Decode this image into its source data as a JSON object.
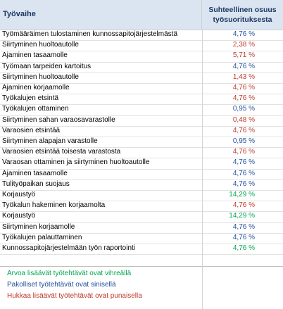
{
  "header": {
    "col1": "Työvaihe",
    "col2_line1": "Suhteellinen osuus",
    "col2_line2": "työsuorituksesta"
  },
  "colors": {
    "green": "#00a651",
    "blue": "#1f4e9c",
    "red": "#c0392b"
  },
  "rows": [
    {
      "name": "Työmääräimen tulostaminen kunnossapitojärjestelmästä",
      "value": "4,76 %",
      "color": "blue"
    },
    {
      "name": "Siirtyminen huoltoautolle",
      "value": "2,38 %",
      "color": "red"
    },
    {
      "name": "Ajaminen tasaamolle",
      "value": "5,71 %",
      "color": "red"
    },
    {
      "name": "Työmaan tarpeiden kartoitus",
      "value": "4,76 %",
      "color": "blue"
    },
    {
      "name": "Siirtyminen huoltoautolle",
      "value": "1,43 %",
      "color": "red"
    },
    {
      "name": "Ajaminen korjaamolle",
      "value": "4,76 %",
      "color": "red"
    },
    {
      "name": "Työkalujen etsintä",
      "value": "4,76 %",
      "color": "red"
    },
    {
      "name": "Työkalujen ottaminen",
      "value": "0,95 %",
      "color": "blue"
    },
    {
      "name": "Siirtyminen sahan varaosavarastolle",
      "value": "0,48 %",
      "color": "red"
    },
    {
      "name": "Varaosien etsintää",
      "value": "4,76 %",
      "color": "red"
    },
    {
      "name": "Siirtyminen alapajan varastolle",
      "value": "0,95 %",
      "color": "blue"
    },
    {
      "name": "Varaosien etsintää toisesta varastosta",
      "value": "4,76 %",
      "color": "red"
    },
    {
      "name": "Varaosan ottaminen ja siirtyminen huoltoautolle",
      "value": "4,76 %",
      "color": "blue"
    },
    {
      "name": "Ajaminen tasaamolle",
      "value": "4,76 %",
      "color": "blue"
    },
    {
      "name": "Tulityöpaikan suojaus",
      "value": "4,76 %",
      "color": "blue"
    },
    {
      "name": "Korjaustyö",
      "value": "14,29 %",
      "color": "green"
    },
    {
      "name": "Työkalun hakeminen korjaamolta",
      "value": "4,76 %",
      "color": "red"
    },
    {
      "name": "Korjaustyö",
      "value": "14,29 %",
      "color": "green"
    },
    {
      "name": "Siirtyminen korjaamolle",
      "value": "4,76 %",
      "color": "blue"
    },
    {
      "name": "Työkalujen palauttaminen",
      "value": "4,76 %",
      "color": "blue"
    },
    {
      "name": "Kunnossapitojärjestelmään työn raportointi",
      "value": "4,76 %",
      "color": "green"
    }
  ],
  "legend": [
    {
      "text": "Arvoa lisäävät työtehtävät ovat vihreällä",
      "color": "green"
    },
    {
      "text": "Pakolliset työtehtävät ovat sinisellä",
      "color": "blue"
    },
    {
      "text": "Hukkaa lisäävät työtehtävät ovat punaisella",
      "color": "red"
    }
  ]
}
